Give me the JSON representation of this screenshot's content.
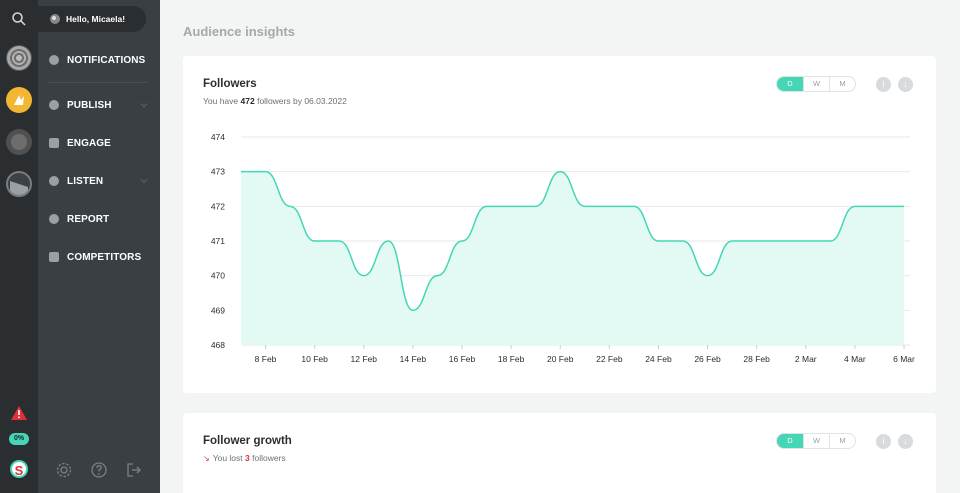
{
  "sidebar": {
    "greeting": "Hello, Micaela!",
    "items": [
      {
        "label": "NOTIFICATIONS",
        "icon": "notification-icon",
        "chevron": false
      },
      {
        "label": "PUBLISH",
        "icon": "publish-icon",
        "chevron": true
      },
      {
        "label": "ENGAGE",
        "icon": "engage-icon",
        "chevron": false
      },
      {
        "label": "LISTEN",
        "icon": "listen-icon",
        "chevron": true
      },
      {
        "label": "REPORT",
        "icon": "report-icon",
        "chevron": false
      },
      {
        "label": "COMPETITORS",
        "icon": "competitors-icon",
        "chevron": false
      }
    ]
  },
  "rail": {
    "badge": "0%",
    "logo": "S"
  },
  "page": {
    "title": "Audience insights"
  },
  "followers_card": {
    "title": "Followers",
    "subtitle_prefix": "You have",
    "count": "472",
    "subtitle_suffix": "followers by 06.03.2022",
    "periods": [
      "D",
      "W",
      "M"
    ],
    "active_period": "D"
  },
  "growth_card": {
    "title": "Follower growth",
    "subtitle_prefix": "You lost",
    "count": "3",
    "subtitle_suffix": "followers",
    "periods": [
      "D",
      "W",
      "M"
    ],
    "active_period": "D"
  },
  "colors": {
    "accent": "#45d6b5",
    "area_fill": "#e3faf4",
    "loss": "#e0313a"
  },
  "chart_data": {
    "type": "area",
    "title": "",
    "xlabel": "",
    "ylabel": "",
    "ylim": [
      468,
      474
    ],
    "yticks": [
      468,
      469,
      470,
      471,
      472,
      473,
      474
    ],
    "xticks": [
      "8 Feb",
      "10 Feb",
      "12 Feb",
      "14 Feb",
      "16 Feb",
      "18 Feb",
      "20 Feb",
      "22 Feb",
      "24 Feb",
      "26 Feb",
      "28 Feb",
      "2 Mar",
      "4 Mar",
      "6 Mar"
    ],
    "x": [
      "7 Feb",
      "8 Feb",
      "9 Feb",
      "10 Feb",
      "11 Feb",
      "12 Feb",
      "13 Feb",
      "14 Feb",
      "15 Feb",
      "16 Feb",
      "17 Feb",
      "18 Feb",
      "19 Feb",
      "20 Feb",
      "21 Feb",
      "22 Feb",
      "23 Feb",
      "24 Feb",
      "25 Feb",
      "26 Feb",
      "27 Feb",
      "28 Feb",
      "1 Mar",
      "2 Mar",
      "3 Mar",
      "4 Mar",
      "5 Mar",
      "6 Mar"
    ],
    "values": [
      473,
      473,
      472,
      471,
      471,
      470,
      471,
      469,
      470,
      471,
      472,
      472,
      472,
      473,
      472,
      472,
      472,
      471,
      471,
      470,
      471,
      471,
      471,
      471,
      471,
      472,
      472,
      472
    ],
    "grid": true,
    "legend": "none"
  }
}
